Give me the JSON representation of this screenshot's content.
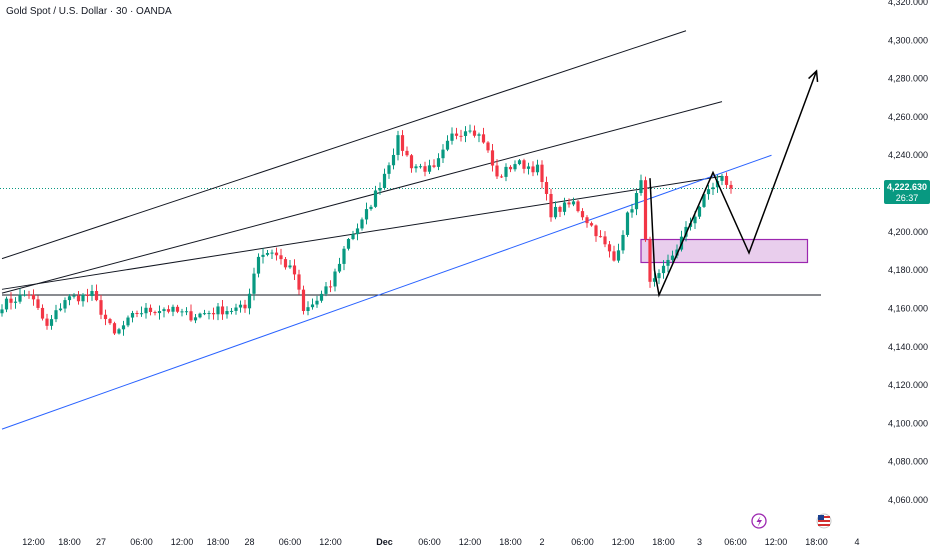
{
  "symbol": {
    "title": "Gold Spot / U.S. Dollar · 30 · OANDA"
  },
  "price_badge": {
    "price": "4,222.630",
    "countdown": "26:37",
    "color": "#089981"
  },
  "colors": {
    "up": "#089981",
    "down": "#f23645",
    "channel_line": "#131722",
    "blue_line": "#2962ff",
    "zone_fill": "#e1bee7",
    "zone_border": "#9c27b0",
    "projection": "#000000",
    "current_price_line": "#089981"
  },
  "icons": {
    "event_1": "lightning-icon",
    "event_2": "us-flag-icon"
  },
  "chart_data": {
    "type": "candlestick",
    "y_range": [
      4050,
      4320
    ],
    "y_ticks": [
      "4,060.000",
      "4,080.000",
      "4,100.000",
      "4,120.000",
      "4,140.000",
      "4,160.000",
      "4,180.000",
      "4,200.000",
      "4,220.000",
      "4,240.000",
      "4,260.000",
      "4,280.000",
      "4,300.000",
      "4,320.000"
    ],
    "x_range_bars": [
      0,
      191
    ],
    "x_ticks": [
      {
        "label": "12:00",
        "bar": 7
      },
      {
        "label": "18:00",
        "bar": 15
      },
      {
        "label": "27",
        "bar": 22
      },
      {
        "label": "06:00",
        "bar": 31
      },
      {
        "label": "12:00",
        "bar": 40
      },
      {
        "label": "18:00",
        "bar": 48
      },
      {
        "label": "28",
        "bar": 55
      },
      {
        "label": "06:00",
        "bar": 64
      },
      {
        "label": "12:00",
        "bar": 73
      },
      {
        "label": "Dec",
        "bar": 85
      },
      {
        "label": "06:00",
        "bar": 95
      },
      {
        "label": "12:00",
        "bar": 104
      },
      {
        "label": "18:00",
        "bar": 113
      },
      {
        "label": "2",
        "bar": 120
      },
      {
        "label": "06:00",
        "bar": 129
      },
      {
        "label": "12:00",
        "bar": 138
      },
      {
        "label": "18:00",
        "bar": 147
      },
      {
        "label": "3",
        "bar": 155
      },
      {
        "label": "06:00",
        "bar": 163
      },
      {
        "label": "12:00",
        "bar": 172
      },
      {
        "label": "18:00",
        "bar": 181
      },
      {
        "label": "4",
        "bar": 190
      }
    ],
    "current_price": 4222.63,
    "close_anchors": [
      [
        0,
        4162
      ],
      [
        6,
        4168
      ],
      [
        10,
        4150
      ],
      [
        14,
        4165
      ],
      [
        20,
        4167
      ],
      [
        25,
        4146
      ],
      [
        30,
        4158
      ],
      [
        36,
        4160
      ],
      [
        42,
        4156
      ],
      [
        48,
        4159
      ],
      [
        54,
        4160
      ],
      [
        57,
        4188
      ],
      [
        60,
        4190
      ],
      [
        65,
        4178
      ],
      [
        67,
        4158
      ],
      [
        70,
        4164
      ],
      [
        73,
        4172
      ],
      [
        77,
        4197
      ],
      [
        80,
        4205
      ],
      [
        84,
        4225
      ],
      [
        88,
        4248
      ],
      [
        91,
        4235
      ],
      [
        96,
        4232
      ],
      [
        100,
        4250
      ],
      [
        104,
        4255
      ],
      [
        107,
        4248
      ],
      [
        110,
        4228
      ],
      [
        114,
        4236
      ],
      [
        119,
        4233
      ],
      [
        122,
        4210
      ],
      [
        127,
        4215
      ],
      [
        132,
        4200
      ],
      [
        136,
        4185
      ],
      [
        139,
        4208
      ],
      [
        142,
        4225
      ],
      [
        144,
        4172
      ],
      [
        146,
        4176
      ],
      [
        150,
        4192
      ],
      [
        153,
        4205
      ],
      [
        157,
        4222
      ],
      [
        160,
        4228
      ],
      [
        162,
        4222.63
      ]
    ],
    "channel_lines": [
      {
        "name": "upper",
        "from": [
          0,
          4186
        ],
        "to": [
          152,
          4305
        ]
      },
      {
        "name": "middle",
        "from": [
          0,
          4168
        ],
        "to": [
          160,
          4268
        ]
      },
      {
        "name": "fan",
        "from": [
          0,
          4170
        ],
        "to": [
          160,
          4229
        ]
      },
      {
        "name": "support",
        "from": [
          0,
          4167
        ],
        "to": [
          182,
          4167
        ]
      },
      {
        "name": "blue-trend",
        "from": [
          0,
          4097
        ],
        "to": [
          171,
          4240
        ]
      }
    ],
    "zone": {
      "from_bar": 142,
      "to_bar": 179,
      "low": 4184,
      "high": 4196
    },
    "projection_path": [
      [
        144,
        4228
      ],
      [
        145,
        4180
      ],
      [
        146,
        4167
      ],
      [
        158,
        4231
      ],
      [
        166,
        4189
      ],
      [
        181,
        4284
      ]
    ]
  }
}
